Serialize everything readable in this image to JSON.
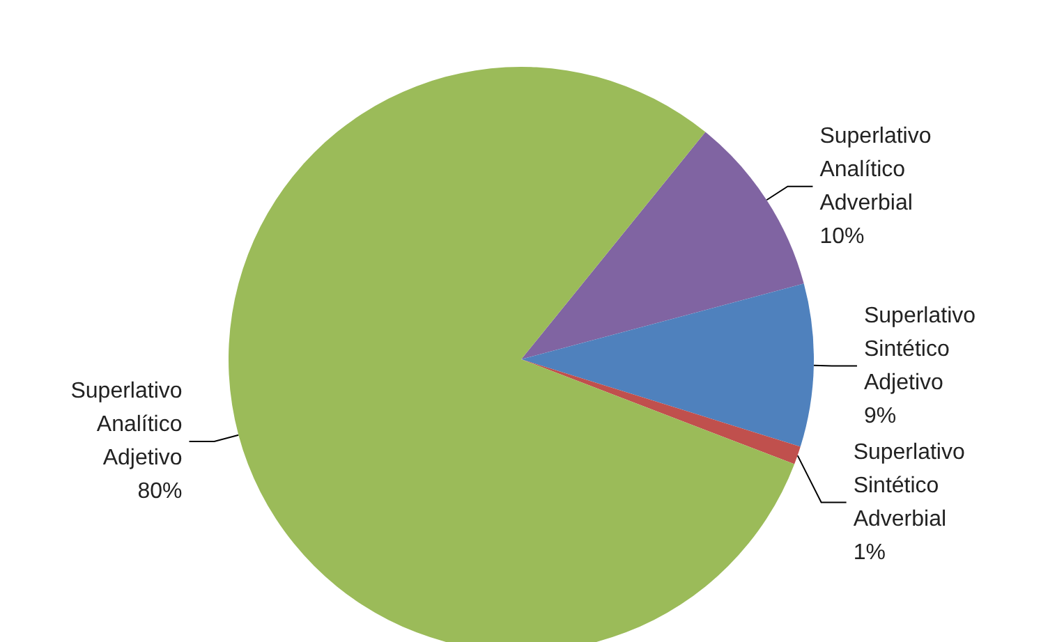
{
  "chart_data": {
    "type": "pie",
    "categories": [
      "Superlativo Analítico Adverbial",
      "Superlativo Sintético Adjetivo",
      "Superlativo Sintético Adverbial",
      "Superlativo Analítico Adjetivo"
    ],
    "values": [
      10,
      9,
      1,
      80
    ],
    "colors": [
      "#8064a2",
      "#4f81bd",
      "#c0504d",
      "#9bbb59"
    ],
    "value_labels": [
      "10%",
      "9%",
      "1%",
      "80%"
    ],
    "legend": false
  }
}
